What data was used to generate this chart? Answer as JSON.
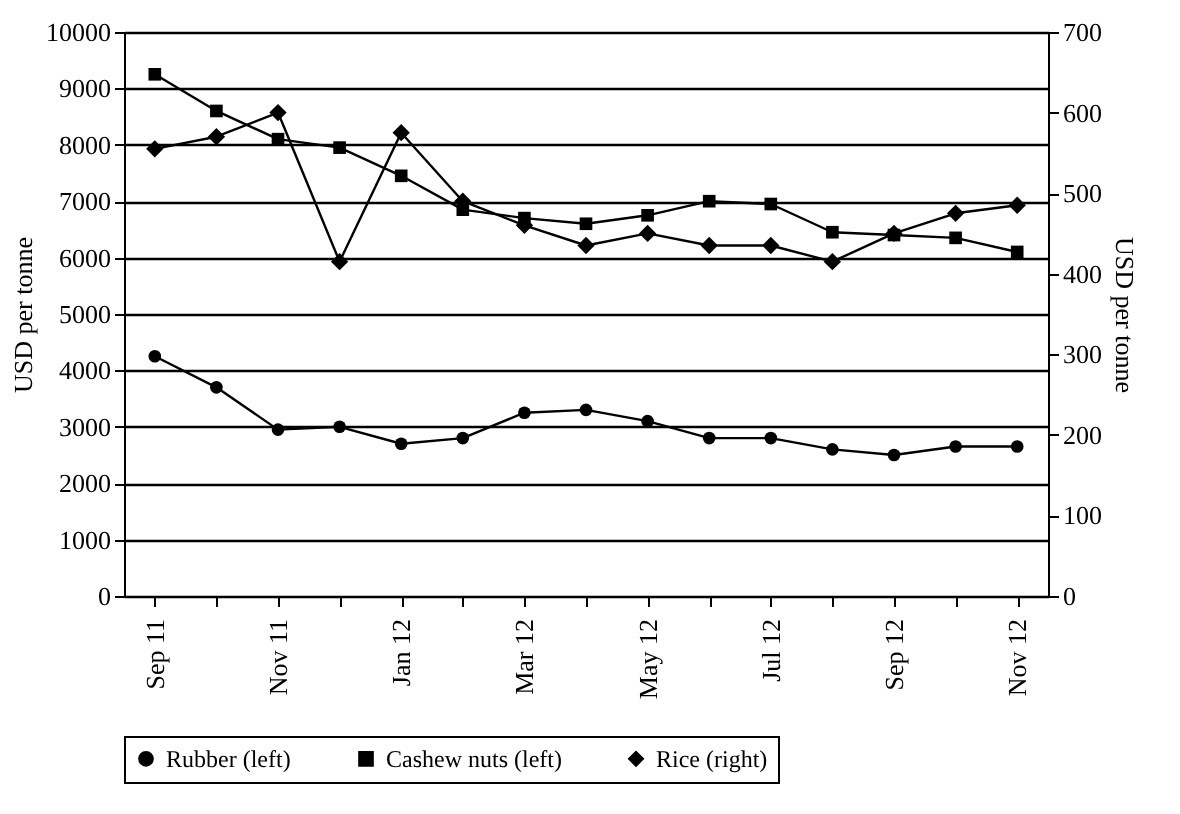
{
  "chart_data": {
    "type": "line",
    "ylabel": "USD per tonne",
    "y2label": "USD per tonne",
    "categories": [
      "Sep 11",
      null,
      "Nov 11",
      null,
      "Jan 12",
      null,
      "Mar 12",
      null,
      "May 12",
      null,
      "Jul 12",
      null,
      "Sep 12",
      null,
      "Nov 12"
    ],
    "ylim": [
      0,
      10000
    ],
    "yticks": [
      0,
      1000,
      2000,
      3000,
      4000,
      5000,
      6000,
      7000,
      8000,
      9000,
      10000
    ],
    "y2lim": [
      0,
      700
    ],
    "y2ticks": [
      0,
      100,
      200,
      300,
      400,
      500,
      600,
      700
    ],
    "grid": "y",
    "legend": "bottom",
    "series": [
      {
        "name": "Rubber (left)",
        "color": "#000000",
        "marker": "circle",
        "values": [
          4250,
          3700,
          2950,
          3000,
          2700,
          2800,
          3250,
          3300,
          3100,
          2800,
          2800,
          2600,
          2500,
          2650,
          2650
        ]
      },
      {
        "name": "Cashew nuts (left)",
        "color": "#000000",
        "marker": "square",
        "values": [
          9250,
          8600,
          8100,
          7950,
          7450,
          6850,
          6700,
          6600,
          6750,
          7000,
          6950,
          6450,
          6400,
          6350,
          6100
        ]
      },
      {
        "name": "Rice (right)",
        "color": "#000000",
        "marker": "diamond",
        "axis": "y2",
        "values": [
          555,
          570,
          600,
          415,
          575,
          490,
          460,
          435,
          450,
          435,
          435,
          415,
          450,
          475,
          485
        ]
      }
    ]
  }
}
